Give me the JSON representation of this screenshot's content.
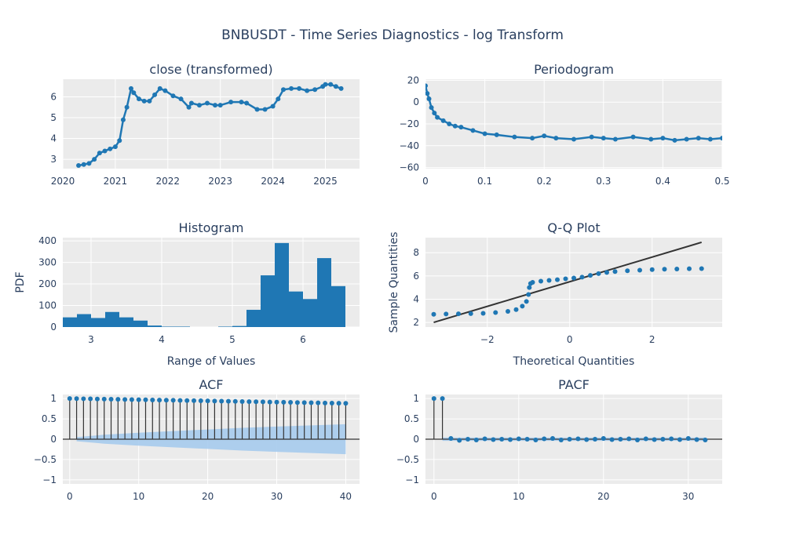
{
  "figure": {
    "title": "BNBUSDT - Time Series Diagnostics - log Transform"
  },
  "colors": {
    "series": "#1f77b4",
    "band": "#a6cbed",
    "plot_bg": "#ebebeb",
    "grid": "#ffffff",
    "line": "#333333",
    "text": "#2a3f5f"
  },
  "chart_data": [
    {
      "id": "close",
      "type": "line",
      "title": "close (transformed)",
      "xlabel": "",
      "ylabel": "",
      "x_ticks": [
        "2020",
        "2021",
        "2022",
        "2023",
        "2024",
        "2025"
      ],
      "x_tick_values": [
        2020,
        2021,
        2022,
        2023,
        2024,
        2025
      ],
      "y_ticks": [
        "3",
        "4",
        "5",
        "6"
      ],
      "y_tick_values": [
        3,
        4,
        5,
        6
      ],
      "xlim": [
        2020,
        2025.65
      ],
      "ylim": [
        2.55,
        6.85
      ],
      "x": [
        2020.3,
        2020.4,
        2020.5,
        2020.6,
        2020.7,
        2020.8,
        2020.9,
        2021.0,
        2021.08,
        2021.15,
        2021.22,
        2021.3,
        2021.35,
        2021.45,
        2021.55,
        2021.65,
        2021.75,
        2021.85,
        2021.95,
        2022.1,
        2022.25,
        2022.4,
        2022.45,
        2022.6,
        2022.75,
        2022.9,
        2023.0,
        2023.2,
        2023.4,
        2023.5,
        2023.7,
        2023.85,
        2024.0,
        2024.1,
        2024.2,
        2024.35,
        2024.5,
        2024.65,
        2024.8,
        2024.95,
        2025.0,
        2025.1,
        2025.2,
        2025.3
      ],
      "values": [
        2.7,
        2.75,
        2.8,
        3.0,
        3.3,
        3.4,
        3.5,
        3.6,
        3.9,
        4.9,
        5.5,
        6.4,
        6.2,
        5.9,
        5.8,
        5.8,
        6.1,
        6.4,
        6.3,
        6.05,
        5.9,
        5.5,
        5.7,
        5.6,
        5.7,
        5.6,
        5.6,
        5.75,
        5.75,
        5.7,
        5.4,
        5.4,
        5.55,
        5.9,
        6.35,
        6.4,
        6.4,
        6.3,
        6.35,
        6.5,
        6.6,
        6.6,
        6.5,
        6.4
      ]
    },
    {
      "id": "periodogram",
      "type": "line",
      "title": "Periodogram",
      "xlabel": "",
      "ylabel": "",
      "x_ticks": [
        "0",
        "0.1",
        "0.2",
        "0.3",
        "0.4",
        "0.5"
      ],
      "x_tick_values": [
        0,
        0.1,
        0.2,
        0.3,
        0.4,
        0.5
      ],
      "y_ticks": [
        "20",
        "0",
        "−20",
        "−40",
        "−60"
      ],
      "y_tick_values": [
        20,
        0,
        -20,
        -40,
        -60
      ],
      "xlim": [
        0,
        0.5
      ],
      "ylim": [
        -61,
        21
      ],
      "x": [
        0.0,
        0.003,
        0.006,
        0.01,
        0.015,
        0.02,
        0.03,
        0.04,
        0.05,
        0.06,
        0.08,
        0.1,
        0.12,
        0.15,
        0.18,
        0.2,
        0.22,
        0.25,
        0.28,
        0.3,
        0.32,
        0.35,
        0.38,
        0.4,
        0.42,
        0.44,
        0.46,
        0.48,
        0.5
      ],
      "values": [
        15,
        8,
        3,
        -5,
        -10,
        -14,
        -17,
        -20,
        -22,
        -23,
        -26,
        -29,
        -30,
        -32,
        -33,
        -31,
        -33,
        -34,
        -32,
        -33,
        -34,
        -32,
        -34,
        -33,
        -35,
        -34,
        -33,
        -34,
        -33
      ]
    },
    {
      "id": "histogram",
      "type": "bar",
      "title": "Histogram",
      "xlabel": "Range of Values",
      "ylabel": "PDF",
      "x_ticks": [
        "3",
        "4",
        "5",
        "6"
      ],
      "x_tick_values": [
        3,
        4,
        5,
        6
      ],
      "y_ticks": [
        "0",
        "100",
        "200",
        "300",
        "400"
      ],
      "y_tick_values": [
        0,
        100,
        200,
        300,
        400
      ],
      "xlim": [
        2.6,
        6.8
      ],
      "ylim": [
        0,
        415
      ],
      "bin_edges": [
        2.6,
        2.8,
        3.0,
        3.2,
        3.4,
        3.6,
        3.8,
        4.0,
        4.2,
        4.4,
        4.6,
        4.8,
        5.0,
        5.2,
        5.4,
        5.6,
        5.8,
        6.0,
        6.2,
        6.4,
        6.6
      ],
      "values": [
        45,
        60,
        42,
        70,
        45,
        30,
        7,
        2,
        2,
        0,
        0,
        2,
        5,
        80,
        240,
        390,
        165,
        130,
        320,
        190
      ]
    },
    {
      "id": "qq",
      "type": "scatter",
      "title": "Q-Q Plot",
      "xlabel": "Theoretical Quantities",
      "ylabel": "Sample Quantities",
      "x_ticks": [
        "−2",
        "0",
        "2"
      ],
      "x_tick_values": [
        -2,
        0,
        2
      ],
      "y_ticks": [
        "2",
        "4",
        "6",
        "8"
      ],
      "y_tick_values": [
        2,
        4,
        6,
        8
      ],
      "xlim": [
        -3.5,
        3.7
      ],
      "ylim": [
        1.6,
        9.3
      ],
      "x": [
        -3.3,
        -3.0,
        -2.7,
        -2.4,
        -2.1,
        -1.8,
        -1.5,
        -1.3,
        -1.15,
        -1.05,
        -1.0,
        -0.98,
        -0.95,
        -0.9,
        -0.7,
        -0.5,
        -0.3,
        -0.1,
        0.1,
        0.3,
        0.5,
        0.7,
        0.9,
        1.1,
        1.4,
        1.7,
        2.0,
        2.3,
        2.6,
        2.9,
        3.2
      ],
      "values": [
        2.7,
        2.72,
        2.74,
        2.76,
        2.78,
        2.85,
        2.95,
        3.1,
        3.4,
        3.8,
        4.4,
        5.0,
        5.35,
        5.45,
        5.55,
        5.62,
        5.68,
        5.75,
        5.82,
        5.9,
        6.05,
        6.2,
        6.3,
        6.38,
        6.45,
        6.5,
        6.55,
        6.58,
        6.6,
        6.62,
        6.63
      ],
      "ref_line": {
        "x": [
          -3.3,
          3.2
        ],
        "y": [
          2.0,
          8.9
        ]
      }
    },
    {
      "id": "acf",
      "type": "stem",
      "title": "ACF",
      "xlabel": "",
      "ylabel": "",
      "x_ticks": [
        "0",
        "10",
        "20",
        "30",
        "40"
      ],
      "x_tick_values": [
        0,
        10,
        20,
        30,
        40
      ],
      "y_ticks": [
        "1",
        "0.5",
        "0",
        "−0.5",
        "−1"
      ],
      "y_tick_values": [
        1,
        0.5,
        0,
        -0.5,
        -1
      ],
      "xlim": [
        -1,
        42
      ],
      "ylim": [
        -1.1,
        1.1
      ],
      "lags": [
        0,
        1,
        2,
        3,
        4,
        5,
        6,
        7,
        8,
        9,
        10,
        11,
        12,
        13,
        14,
        15,
        16,
        17,
        18,
        19,
        20,
        21,
        22,
        23,
        24,
        25,
        26,
        27,
        28,
        29,
        30,
        31,
        32,
        33,
        34,
        35,
        36,
        37,
        38,
        39,
        40
      ],
      "values": [
        1.0,
        0.998,
        0.995,
        0.993,
        0.99,
        0.987,
        0.984,
        0.981,
        0.978,
        0.975,
        0.972,
        0.969,
        0.966,
        0.963,
        0.96,
        0.957,
        0.954,
        0.951,
        0.948,
        0.945,
        0.942,
        0.939,
        0.936,
        0.933,
        0.93,
        0.927,
        0.924,
        0.921,
        0.918,
        0.915,
        0.912,
        0.909,
        0.906,
        0.903,
        0.9,
        0.897,
        0.894,
        0.891,
        0.888,
        0.885,
        0.882
      ],
      "band_lags": [
        1,
        5,
        10,
        15,
        20,
        25,
        30,
        35,
        40
      ],
      "band": [
        0.05,
        0.11,
        0.16,
        0.2,
        0.24,
        0.28,
        0.31,
        0.34,
        0.37
      ]
    },
    {
      "id": "pacf",
      "type": "stem",
      "title": "PACF",
      "xlabel": "",
      "ylabel": "",
      "x_ticks": [
        "0",
        "10",
        "20",
        "30"
      ],
      "x_tick_values": [
        0,
        10,
        20,
        30
      ],
      "y_ticks": [
        "1",
        "0.5",
        "0",
        "−0.5",
        "−1"
      ],
      "y_tick_values": [
        1,
        0.5,
        0,
        -0.5,
        -1
      ],
      "xlim": [
        -1,
        34
      ],
      "ylim": [
        -1.1,
        1.1
      ],
      "lags": [
        0,
        1,
        2,
        3,
        4,
        5,
        6,
        7,
        8,
        9,
        10,
        11,
        12,
        13,
        14,
        15,
        16,
        17,
        18,
        19,
        20,
        21,
        22,
        23,
        24,
        25,
        26,
        27,
        28,
        29,
        30,
        31,
        32
      ],
      "values": [
        1.0,
        1.0,
        0.02,
        -0.03,
        0.0,
        -0.02,
        0.01,
        -0.01,
        0.0,
        -0.01,
        0.01,
        0.0,
        -0.02,
        0.01,
        0.02,
        -0.02,
        0.0,
        0.01,
        -0.01,
        0.0,
        0.02,
        -0.01,
        0.0,
        0.01,
        -0.02,
        0.01,
        -0.01,
        0.0,
        0.01,
        -0.01,
        0.02,
        -0.01,
        -0.02
      ],
      "band": 0.04
    }
  ]
}
